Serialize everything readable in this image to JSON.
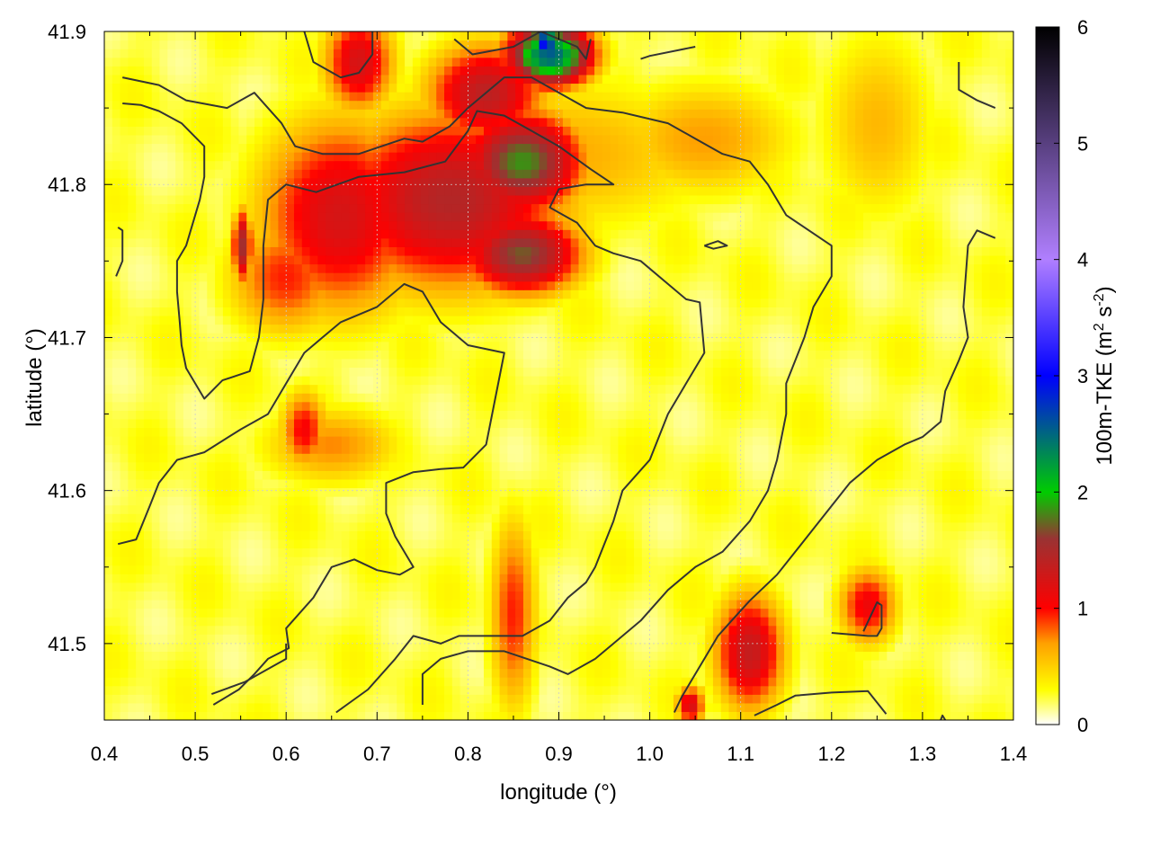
{
  "chart_data": {
    "type": "heatmap",
    "title": "",
    "xlabel": "longitude (°)",
    "ylabel": "latitude (°)",
    "colorbar_label_prefix": "100m-TKE (m",
    "colorbar_label_sup1": "2",
    "colorbar_label_mid": " s",
    "colorbar_label_sup2": "-2",
    "colorbar_label_suffix": ")",
    "xlim": [
      0.4,
      1.4
    ],
    "ylim": [
      41.45,
      41.9
    ],
    "x_ticks": [
      "0.4",
      "0.5",
      "0.6",
      "0.7",
      "0.8",
      "0.9",
      "1.0",
      "1.1",
      "1.2",
      "1.3",
      "1.4"
    ],
    "y_ticks": [
      "41.5",
      "41.6",
      "41.7",
      "41.8",
      "41.9"
    ],
    "clim": [
      0,
      6
    ],
    "colorbar_ticks": [
      "0",
      "1",
      "2",
      "3",
      "4",
      "5",
      "6"
    ],
    "colormap": [
      "#ffffff",
      "#ffff00",
      "#ffa000",
      "#ff0000",
      "#993333",
      "#00cc00",
      "#0000ff",
      "#b07fff",
      "#000000"
    ],
    "colormap_stops": [
      0,
      0.3,
      0.7,
      1.0,
      1.6,
      2.0,
      3.0,
      4.0,
      6.0
    ],
    "grid": true,
    "tke_blobs": [
      {
        "lon": 0.66,
        "lat": 41.78,
        "sx": 0.07,
        "sy": 0.05,
        "v": 1.1
      },
      {
        "lon": 0.78,
        "lat": 41.79,
        "sx": 0.1,
        "sy": 0.045,
        "v": 1.3
      },
      {
        "lon": 0.86,
        "lat": 41.755,
        "sx": 0.05,
        "sy": 0.02,
        "v": 1.55
      },
      {
        "lon": 0.86,
        "lat": 41.815,
        "sx": 0.05,
        "sy": 0.025,
        "v": 1.7
      },
      {
        "lon": 0.68,
        "lat": 41.88,
        "sx": 0.03,
        "sy": 0.025,
        "v": 1.1
      },
      {
        "lon": 0.82,
        "lat": 41.86,
        "sx": 0.05,
        "sy": 0.025,
        "v": 1.25
      },
      {
        "lon": 0.89,
        "lat": 41.885,
        "sx": 0.035,
        "sy": 0.015,
        "v": 2.4
      },
      {
        "lon": 0.885,
        "lat": 41.893,
        "sx": 0.012,
        "sy": 0.008,
        "v": 2.9
      },
      {
        "lon": 0.552,
        "lat": 41.76,
        "sx": 0.008,
        "sy": 0.018,
        "v": 1.4
      },
      {
        "lon": 0.6,
        "lat": 41.74,
        "sx": 0.05,
        "sy": 0.03,
        "v": 0.8
      },
      {
        "lon": 0.9,
        "lat": 41.82,
        "sx": 0.14,
        "sy": 0.04,
        "v": 0.5
      },
      {
        "lon": 1.06,
        "lat": 41.83,
        "sx": 0.08,
        "sy": 0.03,
        "v": 0.55
      },
      {
        "lon": 0.65,
        "lat": 41.63,
        "sx": 0.06,
        "sy": 0.02,
        "v": 0.6
      },
      {
        "lon": 0.85,
        "lat": 41.52,
        "sx": 0.02,
        "sy": 0.05,
        "v": 0.8
      },
      {
        "lon": 1.11,
        "lat": 41.495,
        "sx": 0.03,
        "sy": 0.03,
        "v": 1.2
      },
      {
        "lon": 1.24,
        "lat": 41.525,
        "sx": 0.025,
        "sy": 0.02,
        "v": 0.95
      },
      {
        "lon": 1.045,
        "lat": 41.46,
        "sx": 0.012,
        "sy": 0.01,
        "v": 1.1
      },
      {
        "lon": 1.25,
        "lat": 41.84,
        "sx": 0.05,
        "sy": 0.05,
        "v": 0.45
      },
      {
        "lon": 0.62,
        "lat": 41.64,
        "sx": 0.02,
        "sy": 0.02,
        "v": 0.9
      }
    ],
    "contours": [
      [
        [
          0.42,
          41.87
        ],
        [
          0.46,
          41.865
        ],
        [
          0.49,
          41.855
        ],
        [
          0.535,
          41.85
        ],
        [
          0.565,
          41.86
        ],
        [
          0.595,
          41.84
        ],
        [
          0.61,
          41.825
        ],
        [
          0.64,
          41.82
        ],
        [
          0.68,
          41.82
        ],
        [
          0.73,
          41.83
        ],
        [
          0.75,
          41.828
        ],
        [
          0.78,
          41.838
        ],
        [
          0.8,
          41.85
        ],
        [
          0.82,
          41.86
        ],
        [
          0.84,
          41.87
        ],
        [
          0.87,
          41.87
        ],
        [
          0.9,
          41.86
        ],
        [
          0.93,
          41.85
        ],
        [
          0.97,
          41.847
        ],
        [
          1.02,
          41.84
        ],
        [
          1.05,
          41.83
        ],
        [
          1.08,
          41.82
        ],
        [
          1.11,
          41.815
        ],
        [
          1.13,
          41.8
        ],
        [
          1.15,
          41.78
        ],
        [
          1.2,
          41.76
        ],
        [
          1.2,
          41.74
        ],
        [
          1.18,
          41.72
        ],
        [
          1.17,
          41.7
        ],
        [
          1.15,
          41.67
        ],
        [
          1.15,
          41.65
        ],
        [
          1.14,
          41.62
        ],
        [
          1.13,
          41.6
        ],
        [
          1.11,
          41.58
        ],
        [
          1.08,
          41.56
        ],
        [
          1.05,
          41.55
        ],
        [
          1.02,
          41.535
        ],
        [
          0.99,
          41.515
        ],
        [
          0.96,
          41.5
        ],
        [
          0.94,
          41.49
        ],
        [
          0.91,
          41.48
        ],
        [
          0.89,
          41.485
        ],
        [
          0.84,
          41.495
        ],
        [
          0.8,
          41.495
        ],
        [
          0.77,
          41.49
        ],
        [
          0.75,
          41.48
        ],
        [
          0.75,
          41.46
        ]
      ],
      [
        [
          0.42,
          41.853
        ],
        [
          0.44,
          41.852
        ],
        [
          0.46,
          41.848
        ],
        [
          0.485,
          41.84
        ],
        [
          0.51,
          41.825
        ],
        [
          0.51,
          41.805
        ],
        [
          0.505,
          41.79
        ],
        [
          0.49,
          41.76
        ],
        [
          0.48,
          41.75
        ],
        [
          0.48,
          41.73
        ],
        [
          0.483,
          41.71
        ],
        [
          0.485,
          41.695
        ],
        [
          0.49,
          41.68
        ],
        [
          0.51,
          41.66
        ],
        [
          0.53,
          41.672
        ],
        [
          0.56,
          41.678
        ],
        [
          0.57,
          41.7
        ],
        [
          0.575,
          41.725
        ],
        [
          0.575,
          41.76
        ],
        [
          0.58,
          41.79
        ],
        [
          0.6,
          41.8
        ],
        [
          0.633,
          41.795
        ],
        [
          0.68,
          41.805
        ],
        [
          0.73,
          41.808
        ],
        [
          0.775,
          41.815
        ],
        [
          0.8,
          41.835
        ],
        [
          0.81,
          41.848
        ],
        [
          0.84,
          41.845
        ],
        [
          0.87,
          41.835
        ],
        [
          0.9,
          41.825
        ],
        [
          0.935,
          41.81
        ],
        [
          0.96,
          41.8
        ],
        [
          0.93,
          41.8
        ],
        [
          0.9,
          41.797
        ],
        [
          0.89,
          41.785
        ],
        [
          0.92,
          41.775
        ],
        [
          0.94,
          41.76
        ],
        [
          0.96,
          41.755
        ],
        [
          0.99,
          41.75
        ],
        [
          1.02,
          41.735
        ],
        [
          1.04,
          41.725
        ],
        [
          1.055,
          41.723
        ],
        [
          1.06,
          41.69
        ],
        [
          1.04,
          41.67
        ],
        [
          1.02,
          41.65
        ],
        [
          1.01,
          41.635
        ],
        [
          1.0,
          41.62
        ],
        [
          0.97,
          41.6
        ],
        [
          0.96,
          41.58
        ],
        [
          0.94,
          41.55
        ],
        [
          0.93,
          41.54
        ],
        [
          0.91,
          41.53
        ],
        [
          0.89,
          41.515
        ],
        [
          0.86,
          41.505
        ],
        [
          0.83,
          41.505
        ],
        [
          0.79,
          41.505
        ],
        [
          0.77,
          41.5
        ],
        [
          0.74,
          41.505
        ],
        [
          0.72,
          41.49
        ],
        [
          0.69,
          41.47
        ],
        [
          0.655,
          41.455
        ]
      ],
      [
        [
          0.415,
          41.565
        ],
        [
          0.435,
          41.568
        ],
        [
          0.45,
          41.59
        ],
        [
          0.46,
          41.605
        ],
        [
          0.48,
          41.62
        ],
        [
          0.51,
          41.625
        ],
        [
          0.55,
          41.64
        ],
        [
          0.58,
          41.65
        ],
        [
          0.6,
          41.67
        ],
        [
          0.62,
          41.69
        ],
        [
          0.64,
          41.7
        ],
        [
          0.66,
          41.71
        ],
        [
          0.68,
          41.715
        ],
        [
          0.7,
          41.72
        ],
        [
          0.73,
          41.735
        ],
        [
          0.75,
          41.73
        ],
        [
          0.77,
          41.71
        ],
        [
          0.8,
          41.695
        ],
        [
          0.84,
          41.69
        ],
        [
          0.83,
          41.66
        ],
        [
          0.82,
          41.63
        ],
        [
          0.795,
          41.615
        ],
        [
          0.77,
          41.614
        ],
        [
          0.74,
          41.612
        ],
        [
          0.71,
          41.605
        ],
        [
          0.71,
          41.585
        ],
        [
          0.72,
          41.57
        ],
        [
          0.74,
          41.55
        ],
        [
          0.725,
          41.545
        ],
        [
          0.7,
          41.548
        ],
        [
          0.675,
          41.555
        ],
        [
          0.65,
          41.55
        ],
        [
          0.63,
          41.53
        ],
        [
          0.6,
          41.51
        ],
        [
          0.603,
          41.497
        ],
        [
          0.58,
          41.49
        ],
        [
          0.565,
          41.48
        ],
        [
          0.548,
          41.47
        ],
        [
          0.52,
          41.46
        ]
      ],
      [
        [
          0.518,
          41.467
        ],
        [
          0.555,
          41.475
        ],
        [
          0.6,
          41.49
        ],
        [
          0.6,
          41.5
        ]
      ],
      [
        [
          0.413,
          41.74
        ],
        [
          0.42,
          41.75
        ],
        [
          0.42,
          41.77
        ],
        [
          0.415,
          41.772
        ]
      ],
      [
        [
          0.62,
          41.9
        ],
        [
          0.63,
          41.88
        ],
        [
          0.66,
          41.87
        ],
        [
          0.68,
          41.873
        ],
        [
          0.695,
          41.885
        ],
        [
          0.695,
          41.9
        ]
      ],
      [
        [
          0.785,
          41.895
        ],
        [
          0.805,
          41.885
        ],
        [
          0.85,
          41.89
        ],
        [
          0.88,
          41.9
        ],
        [
          0.92,
          41.89
        ],
        [
          0.93,
          41.882
        ],
        [
          0.935,
          41.895
        ]
      ],
      [
        [
          0.99,
          41.882
        ],
        [
          1.0,
          41.884
        ],
        [
          1.05,
          41.89
        ]
      ],
      [
        [
          1.34,
          41.88
        ],
        [
          1.34,
          41.862
        ],
        [
          1.36,
          41.855
        ],
        [
          1.38,
          41.85
        ]
      ],
      [
        [
          1.06,
          41.76
        ],
        [
          1.075,
          41.763
        ],
        [
          1.085,
          41.76
        ],
        [
          1.07,
          41.758
        ],
        [
          1.06,
          41.76
        ]
      ],
      [
        [
          1.027,
          41.455
        ],
        [
          1.035,
          41.465
        ],
        [
          1.045,
          41.475
        ],
        [
          1.06,
          41.49
        ],
        [
          1.075,
          41.505
        ],
        [
          1.09,
          41.515
        ],
        [
          1.11,
          41.528
        ],
        [
          1.14,
          41.545
        ],
        [
          1.16,
          41.56
        ],
        [
          1.18,
          41.575
        ],
        [
          1.2,
          41.59
        ],
        [
          1.22,
          41.605
        ],
        [
          1.25,
          41.62
        ],
        [
          1.28,
          41.63
        ],
        [
          1.3,
          41.635
        ],
        [
          1.32,
          41.645
        ],
        [
          1.325,
          41.665
        ],
        [
          1.34,
          41.685
        ],
        [
          1.35,
          41.7
        ],
        [
          1.345,
          41.72
        ],
        [
          1.35,
          41.76
        ],
        [
          1.36,
          41.77
        ],
        [
          1.38,
          41.765
        ]
      ],
      [
        [
          1.2,
          41.507
        ],
        [
          1.24,
          41.505
        ],
        [
          1.25,
          41.505
        ],
        [
          1.255,
          41.51
        ],
        [
          1.255,
          41.525
        ],
        [
          1.25,
          41.527
        ],
        [
          1.235,
          41.508
        ]
      ],
      [
        [
          1.115,
          41.453
        ],
        [
          1.14,
          41.46
        ],
        [
          1.16,
          41.466
        ],
        [
          1.2,
          41.468
        ],
        [
          1.24,
          41.469
        ],
        [
          1.26,
          41.454
        ]
      ],
      [
        [
          1.32,
          41.45
        ],
        [
          1.322,
          41.453
        ],
        [
          1.325,
          41.45
        ]
      ]
    ]
  }
}
